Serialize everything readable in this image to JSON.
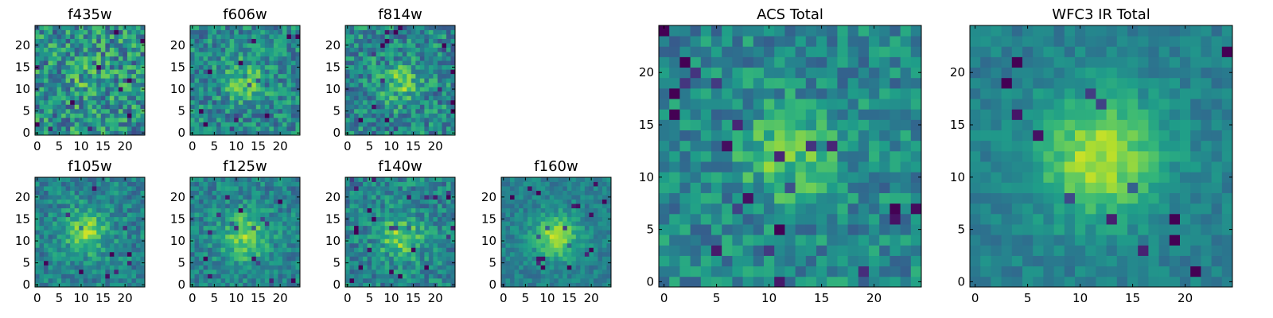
{
  "chart_data": {
    "type": "heatmap",
    "colormap": "viridis",
    "panels": [
      {
        "title": "f435w",
        "grid_size": 25,
        "x_ticks": [
          "0",
          "5",
          "10",
          "15",
          "20"
        ],
        "y_ticks": [
          "0",
          "5",
          "10",
          "15",
          "20"
        ],
        "peak": [
          12,
          12
        ],
        "signal": 0.18,
        "noise": 0.55,
        "sigma": 3.0
      },
      {
        "title": "f606w",
        "grid_size": 25,
        "x_ticks": [
          "0",
          "5",
          "10",
          "15",
          "20"
        ],
        "y_ticks": [
          "0",
          "5",
          "10",
          "15",
          "20"
        ],
        "peak": [
          12,
          12
        ],
        "signal": 0.4,
        "noise": 0.42,
        "sigma": 3.2
      },
      {
        "title": "f814w",
        "grid_size": 25,
        "x_ticks": [
          "0",
          "5",
          "10",
          "15",
          "20"
        ],
        "y_ticks": [
          "0",
          "5",
          "10",
          "15",
          "20"
        ],
        "peak": [
          12,
          11
        ],
        "signal": 0.45,
        "noise": 0.45,
        "sigma": 3.0
      },
      {
        "title": "f105w",
        "grid_size": 25,
        "x_ticks": [
          "0",
          "5",
          "10",
          "15",
          "20"
        ],
        "y_ticks": [
          "0",
          "5",
          "10",
          "15",
          "20"
        ],
        "peak": [
          11,
          12
        ],
        "signal": 0.6,
        "noise": 0.32,
        "sigma": 3.5
      },
      {
        "title": "f125w",
        "grid_size": 25,
        "x_ticks": [
          "0",
          "5",
          "10",
          "15",
          "20"
        ],
        "y_ticks": [
          "0",
          "5",
          "10",
          "15",
          "20"
        ],
        "peak": [
          12,
          11
        ],
        "signal": 0.6,
        "noise": 0.32,
        "sigma": 3.8
      },
      {
        "title": "f140w",
        "grid_size": 25,
        "x_ticks": [
          "0",
          "5",
          "10",
          "15",
          "20"
        ],
        "y_ticks": [
          "0",
          "5",
          "10",
          "15",
          "20"
        ],
        "peak": [
          12,
          11
        ],
        "signal": 0.55,
        "noise": 0.36,
        "sigma": 3.4
      },
      {
        "title": "f160w",
        "grid_size": 25,
        "x_ticks": [
          "0",
          "5",
          "10",
          "15",
          "20"
        ],
        "y_ticks": [
          "0",
          "5",
          "10",
          "15",
          "20"
        ],
        "peak": [
          12,
          11
        ],
        "signal": 0.7,
        "noise": 0.22,
        "sigma": 3.5
      },
      {
        "title": "ACS Total",
        "grid_size": 25,
        "x_ticks": [
          "0",
          "5",
          "10",
          "15",
          "20"
        ],
        "y_ticks": [
          "0",
          "5",
          "10",
          "15",
          "20"
        ],
        "peak": [
          12,
          12
        ],
        "signal": 0.45,
        "noise": 0.36,
        "sigma": 3.2
      },
      {
        "title": "WFC3 IR Total",
        "grid_size": 25,
        "x_ticks": [
          "0",
          "5",
          "10",
          "15",
          "20"
        ],
        "y_ticks": [
          "0",
          "5",
          "10",
          "15",
          "20"
        ],
        "peak": [
          12,
          12
        ],
        "signal": 0.75,
        "noise": 0.18,
        "sigma": 4.2
      }
    ]
  }
}
